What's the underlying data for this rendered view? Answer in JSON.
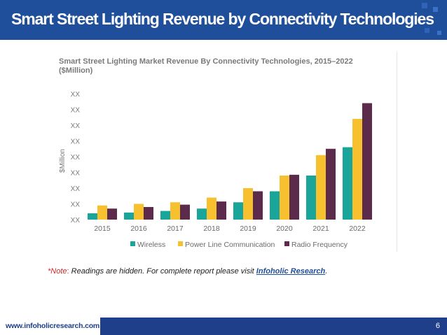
{
  "header": {
    "title": "Smart Street Lighting Revenue by Connectivity Technologies"
  },
  "note": {
    "star": "*",
    "label": "Note",
    "colon": ":",
    "text": " Readings are hidden. For complete report please visit ",
    "link_text": "Infoholic Research",
    "end": "."
  },
  "footer": {
    "url": "www.infoholicresearch.com",
    "page": "6"
  },
  "chart_data": {
    "type": "bar",
    "title": "Smart Street Lighting Market Revenue By Connectivity Technologies, 2015–2022 ($Million)",
    "xlabel": "",
    "ylabel": "$Million",
    "categories": [
      "2015",
      "2016",
      "2017",
      "2018",
      "2019",
      "2020",
      "2021",
      "2022"
    ],
    "yticks": [
      "XX",
      "XX",
      "XX",
      "XX",
      "XX",
      "XX",
      "XX",
      "XX",
      "XX"
    ],
    "ylim": [
      0,
      8
    ],
    "series": [
      {
        "name": "Wireless",
        "color": "#1aa59a",
        "values": [
          0.4,
          0.45,
          0.55,
          0.7,
          1.1,
          1.8,
          2.8,
          4.6
        ]
      },
      {
        "name": "Power Line Communication",
        "color": "#f6c02f",
        "values": [
          0.9,
          1.0,
          1.1,
          1.4,
          2.0,
          2.8,
          4.1,
          6.4
        ]
      },
      {
        "name": "Radio Frequency",
        "color": "#5c2a4a",
        "values": [
          0.7,
          0.8,
          0.95,
          1.15,
          1.8,
          2.85,
          4.5,
          7.4
        ]
      }
    ],
    "legend_position": "bottom",
    "grid": false
  }
}
